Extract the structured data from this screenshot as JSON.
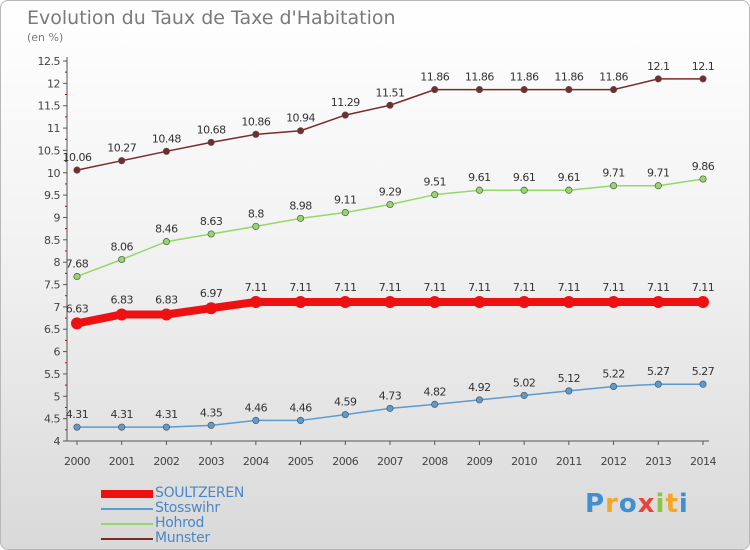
{
  "title": "Evolution du Taux de Taxe d'Habitation",
  "subtitle": "(en %)",
  "logo": {
    "letters": [
      "P",
      "r",
      "o",
      "x",
      "i",
      "t",
      "i"
    ],
    "colors": [
      "#3f8fd2",
      "#f5a623",
      "#3f8fd2",
      "#e8443a",
      "#8cc63e",
      "#f5a623",
      "#3f8fd2"
    ]
  },
  "chart_data": {
    "type": "line",
    "x": [
      2000,
      2001,
      2002,
      2003,
      2004,
      2005,
      2006,
      2007,
      2008,
      2009,
      2010,
      2011,
      2012,
      2013,
      2014
    ],
    "ylim": [
      4,
      12.5
    ],
    "yticks": [
      "4",
      "4.5",
      "5",
      "5.5",
      "6",
      "6.5",
      "7",
      "7.5",
      "8",
      "8.5",
      "9",
      "9.5",
      "10",
      "10.5",
      "11",
      "11.5",
      "12",
      "12.5"
    ],
    "grid": false,
    "legend_position": "bottom-left",
    "series": [
      {
        "name": "SOULTZEREN",
        "color": "#ee1111",
        "values": [
          6.63,
          6.83,
          6.83,
          6.97,
          7.11,
          7.11,
          7.11,
          7.11,
          7.11,
          7.11,
          7.11,
          7.11,
          7.11,
          7.11,
          7.11
        ],
        "labels": [
          "6.63",
          "6.83",
          "6.83",
          "6.97",
          "7.11",
          "7.11",
          "7.11",
          "7.11",
          "7.11",
          "7.11",
          "7.11",
          "7.11",
          "7.11",
          "7.11",
          "7.11"
        ]
      },
      {
        "name": "Stosswihr",
        "color": "#5a9bd0",
        "values": [
          4.31,
          4.31,
          4.31,
          4.35,
          4.46,
          4.46,
          4.59,
          4.73,
          4.82,
          4.92,
          5.02,
          5.12,
          5.22,
          5.27,
          5.27
        ],
        "labels": [
          "4.31",
          "4.31",
          "4.31",
          "4.35",
          "4.46",
          "4.46",
          "4.59",
          "4.73",
          "4.82",
          "4.92",
          "5.02",
          "5.12",
          "5.22",
          "5.27",
          "5.27"
        ]
      },
      {
        "name": "Hohrod",
        "color": "#94d86a",
        "values": [
          7.68,
          8.06,
          8.46,
          8.63,
          8.8,
          8.98,
          9.11,
          9.29,
          9.51,
          9.61,
          9.61,
          9.61,
          9.71,
          9.71,
          9.86
        ],
        "labels": [
          "7.68",
          "8.06",
          "8.46",
          "8.63",
          "8.8",
          "8.98",
          "9.11",
          "9.29",
          "9.51",
          "9.61",
          "9.61",
          "9.61",
          "9.71",
          "9.71",
          "9.86"
        ]
      },
      {
        "name": "Munster",
        "color": "#7a2a2a",
        "values": [
          10.06,
          10.27,
          10.48,
          10.68,
          10.86,
          10.94,
          11.29,
          11.51,
          11.86,
          11.86,
          11.86,
          11.86,
          11.86,
          12.1,
          12.1
        ],
        "labels": [
          "10.06",
          "10.27",
          "10.48",
          "10.68",
          "10.86",
          "10.94",
          "11.29",
          "11.51",
          "11.86",
          "11.86",
          "11.86",
          "11.86",
          "11.86",
          "12.1",
          "12.1"
        ]
      }
    ]
  }
}
